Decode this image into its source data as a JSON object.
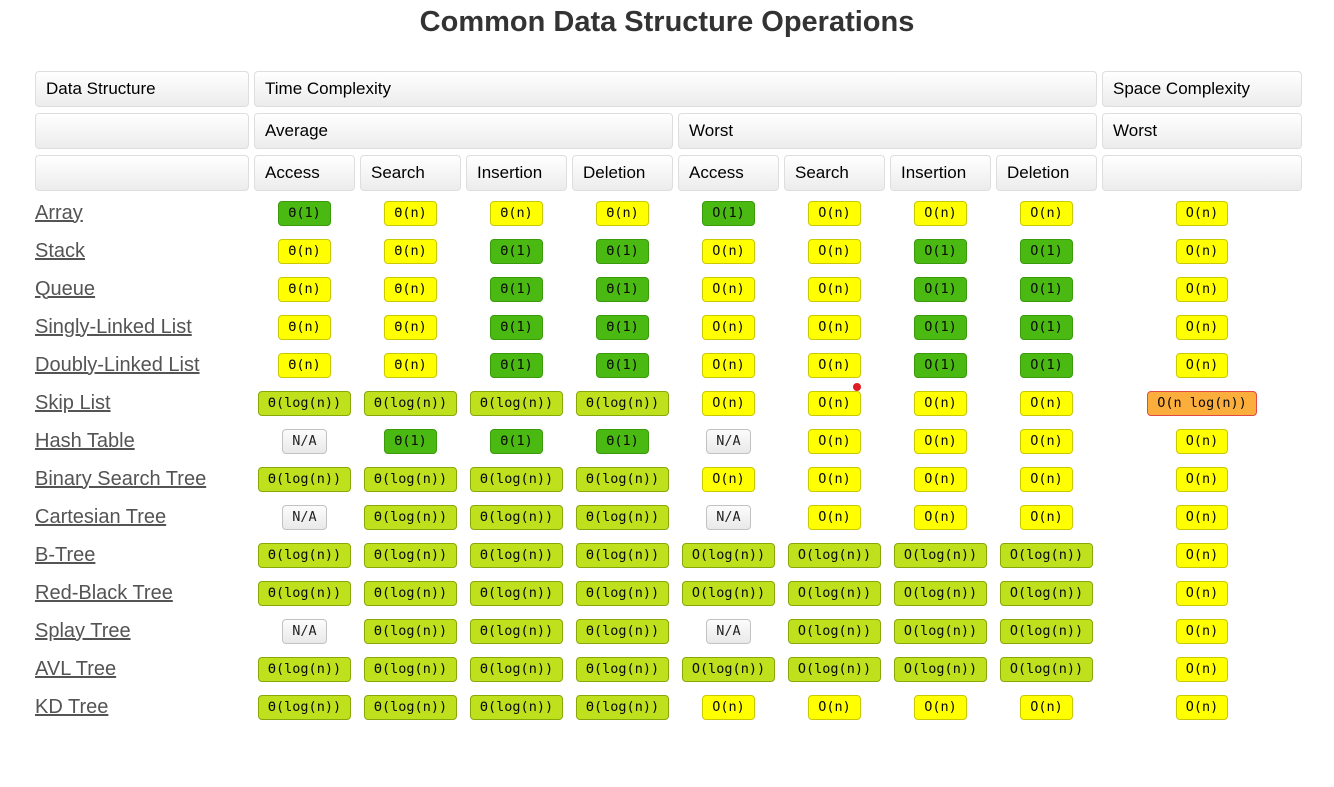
{
  "title": "Common Data Structure Operations",
  "header": {
    "data_structure": "Data Structure",
    "time_complexity": "Time Complexity",
    "space_complexity": "Space Complexity",
    "average": "Average",
    "worst": "Worst",
    "space_worst": "Worst",
    "operations": [
      "Access",
      "Search",
      "Insertion",
      "Deletion"
    ]
  },
  "colors": {
    "excellent_green": "#4aba12",
    "good_yellowgreen": "#bfe01d",
    "fair_yellow": "#ffff00",
    "bad_orange": "#fbae3c",
    "na_gray": "#efefef",
    "red_dot": "#e01b24"
  },
  "rows": [
    {
      "name": "Array",
      "average": [
        [
          "Θ(1)",
          "g"
        ],
        [
          "Θ(n)",
          "y"
        ],
        [
          "Θ(n)",
          "y"
        ],
        [
          "Θ(n)",
          "y"
        ]
      ],
      "worst": [
        [
          "O(1)",
          "g"
        ],
        [
          "O(n)",
          "y"
        ],
        [
          "O(n)",
          "y"
        ],
        [
          "O(n)",
          "y"
        ]
      ],
      "space": [
        "O(n)",
        "y"
      ]
    },
    {
      "name": "Stack",
      "average": [
        [
          "Θ(n)",
          "y"
        ],
        [
          "Θ(n)",
          "y"
        ],
        [
          "Θ(1)",
          "g"
        ],
        [
          "Θ(1)",
          "g"
        ]
      ],
      "worst": [
        [
          "O(n)",
          "y"
        ],
        [
          "O(n)",
          "y"
        ],
        [
          "O(1)",
          "g"
        ],
        [
          "O(1)",
          "g"
        ]
      ],
      "space": [
        "O(n)",
        "y"
      ]
    },
    {
      "name": "Queue",
      "average": [
        [
          "Θ(n)",
          "y"
        ],
        [
          "Θ(n)",
          "y"
        ],
        [
          "Θ(1)",
          "g"
        ],
        [
          "Θ(1)",
          "g"
        ]
      ],
      "worst": [
        [
          "O(n)",
          "y"
        ],
        [
          "O(n)",
          "y"
        ],
        [
          "O(1)",
          "g"
        ],
        [
          "O(1)",
          "g"
        ]
      ],
      "space": [
        "O(n)",
        "y"
      ]
    },
    {
      "name": "Singly-Linked List",
      "average": [
        [
          "Θ(n)",
          "y"
        ],
        [
          "Θ(n)",
          "y"
        ],
        [
          "Θ(1)",
          "g"
        ],
        [
          "Θ(1)",
          "g"
        ]
      ],
      "worst": [
        [
          "O(n)",
          "y"
        ],
        [
          "O(n)",
          "y"
        ],
        [
          "O(1)",
          "g"
        ],
        [
          "O(1)",
          "g"
        ]
      ],
      "space": [
        "O(n)",
        "y"
      ]
    },
    {
      "name": "Doubly-Linked List",
      "average": [
        [
          "Θ(n)",
          "y"
        ],
        [
          "Θ(n)",
          "y"
        ],
        [
          "Θ(1)",
          "g"
        ],
        [
          "Θ(1)",
          "g"
        ]
      ],
      "worst": [
        [
          "O(n)",
          "y"
        ],
        [
          "O(n)",
          "y"
        ],
        [
          "O(1)",
          "g"
        ],
        [
          "O(1)",
          "g"
        ]
      ],
      "space": [
        "O(n)",
        "y"
      ]
    },
    {
      "name": "Skip List",
      "average": [
        [
          "Θ(log(n))",
          "yg"
        ],
        [
          "Θ(log(n))",
          "yg"
        ],
        [
          "Θ(log(n))",
          "yg"
        ],
        [
          "Θ(log(n))",
          "yg"
        ]
      ],
      "worst": [
        [
          "O(n)",
          "y"
        ],
        [
          "O(n)",
          "y"
        ],
        [
          "O(n)",
          "y"
        ],
        [
          "O(n)",
          "y"
        ]
      ],
      "space": [
        "O(n log(n))",
        "o"
      ]
    },
    {
      "name": "Hash Table",
      "average": [
        [
          "N/A",
          "na"
        ],
        [
          "Θ(1)",
          "g"
        ],
        [
          "Θ(1)",
          "g"
        ],
        [
          "Θ(1)",
          "g"
        ]
      ],
      "worst": [
        [
          "N/A",
          "na"
        ],
        [
          "O(n)",
          "y"
        ],
        [
          "O(n)",
          "y"
        ],
        [
          "O(n)",
          "y"
        ]
      ],
      "space": [
        "O(n)",
        "y"
      ]
    },
    {
      "name": "Binary Search Tree",
      "average": [
        [
          "Θ(log(n))",
          "yg"
        ],
        [
          "Θ(log(n))",
          "yg"
        ],
        [
          "Θ(log(n))",
          "yg"
        ],
        [
          "Θ(log(n))",
          "yg"
        ]
      ],
      "worst": [
        [
          "O(n)",
          "y"
        ],
        [
          "O(n)",
          "y"
        ],
        [
          "O(n)",
          "y"
        ],
        [
          "O(n)",
          "y"
        ]
      ],
      "space": [
        "O(n)",
        "y"
      ]
    },
    {
      "name": "Cartesian Tree",
      "average": [
        [
          "N/A",
          "na"
        ],
        [
          "Θ(log(n))",
          "yg"
        ],
        [
          "Θ(log(n))",
          "yg"
        ],
        [
          "Θ(log(n))",
          "yg"
        ]
      ],
      "worst": [
        [
          "N/A",
          "na"
        ],
        [
          "O(n)",
          "y"
        ],
        [
          "O(n)",
          "y"
        ],
        [
          "O(n)",
          "y"
        ]
      ],
      "space": [
        "O(n)",
        "y"
      ]
    },
    {
      "name": "B-Tree",
      "average": [
        [
          "Θ(log(n))",
          "yg"
        ],
        [
          "Θ(log(n))",
          "yg"
        ],
        [
          "Θ(log(n))",
          "yg"
        ],
        [
          "Θ(log(n))",
          "yg"
        ]
      ],
      "worst": [
        [
          "O(log(n))",
          "yg"
        ],
        [
          "O(log(n))",
          "yg"
        ],
        [
          "O(log(n))",
          "yg"
        ],
        [
          "O(log(n))",
          "yg"
        ]
      ],
      "space": [
        "O(n)",
        "y"
      ]
    },
    {
      "name": "Red-Black Tree",
      "average": [
        [
          "Θ(log(n))",
          "yg"
        ],
        [
          "Θ(log(n))",
          "yg"
        ],
        [
          "Θ(log(n))",
          "yg"
        ],
        [
          "Θ(log(n))",
          "yg"
        ]
      ],
      "worst": [
        [
          "O(log(n))",
          "yg"
        ],
        [
          "O(log(n))",
          "yg"
        ],
        [
          "O(log(n))",
          "yg"
        ],
        [
          "O(log(n))",
          "yg"
        ]
      ],
      "space": [
        "O(n)",
        "y"
      ]
    },
    {
      "name": "Splay Tree",
      "average": [
        [
          "N/A",
          "na"
        ],
        [
          "Θ(log(n))",
          "yg"
        ],
        [
          "Θ(log(n))",
          "yg"
        ],
        [
          "Θ(log(n))",
          "yg"
        ]
      ],
      "worst": [
        [
          "N/A",
          "na"
        ],
        [
          "O(log(n))",
          "yg"
        ],
        [
          "O(log(n))",
          "yg"
        ],
        [
          "O(log(n))",
          "yg"
        ]
      ],
      "space": [
        "O(n)",
        "y"
      ]
    },
    {
      "name": "AVL Tree",
      "average": [
        [
          "Θ(log(n))",
          "yg"
        ],
        [
          "Θ(log(n))",
          "yg"
        ],
        [
          "Θ(log(n))",
          "yg"
        ],
        [
          "Θ(log(n))",
          "yg"
        ]
      ],
      "worst": [
        [
          "O(log(n))",
          "yg"
        ],
        [
          "O(log(n))",
          "yg"
        ],
        [
          "O(log(n))",
          "yg"
        ],
        [
          "O(log(n))",
          "yg"
        ]
      ],
      "space": [
        "O(n)",
        "y"
      ]
    },
    {
      "name": "KD Tree",
      "average": [
        [
          "Θ(log(n))",
          "yg"
        ],
        [
          "Θ(log(n))",
          "yg"
        ],
        [
          "Θ(log(n))",
          "yg"
        ],
        [
          "Θ(log(n))",
          "yg"
        ]
      ],
      "worst": [
        [
          "O(n)",
          "y"
        ],
        [
          "O(n)",
          "y"
        ],
        [
          "O(n)",
          "y"
        ],
        [
          "O(n)",
          "y"
        ]
      ],
      "space": [
        "O(n)",
        "y"
      ]
    }
  ]
}
